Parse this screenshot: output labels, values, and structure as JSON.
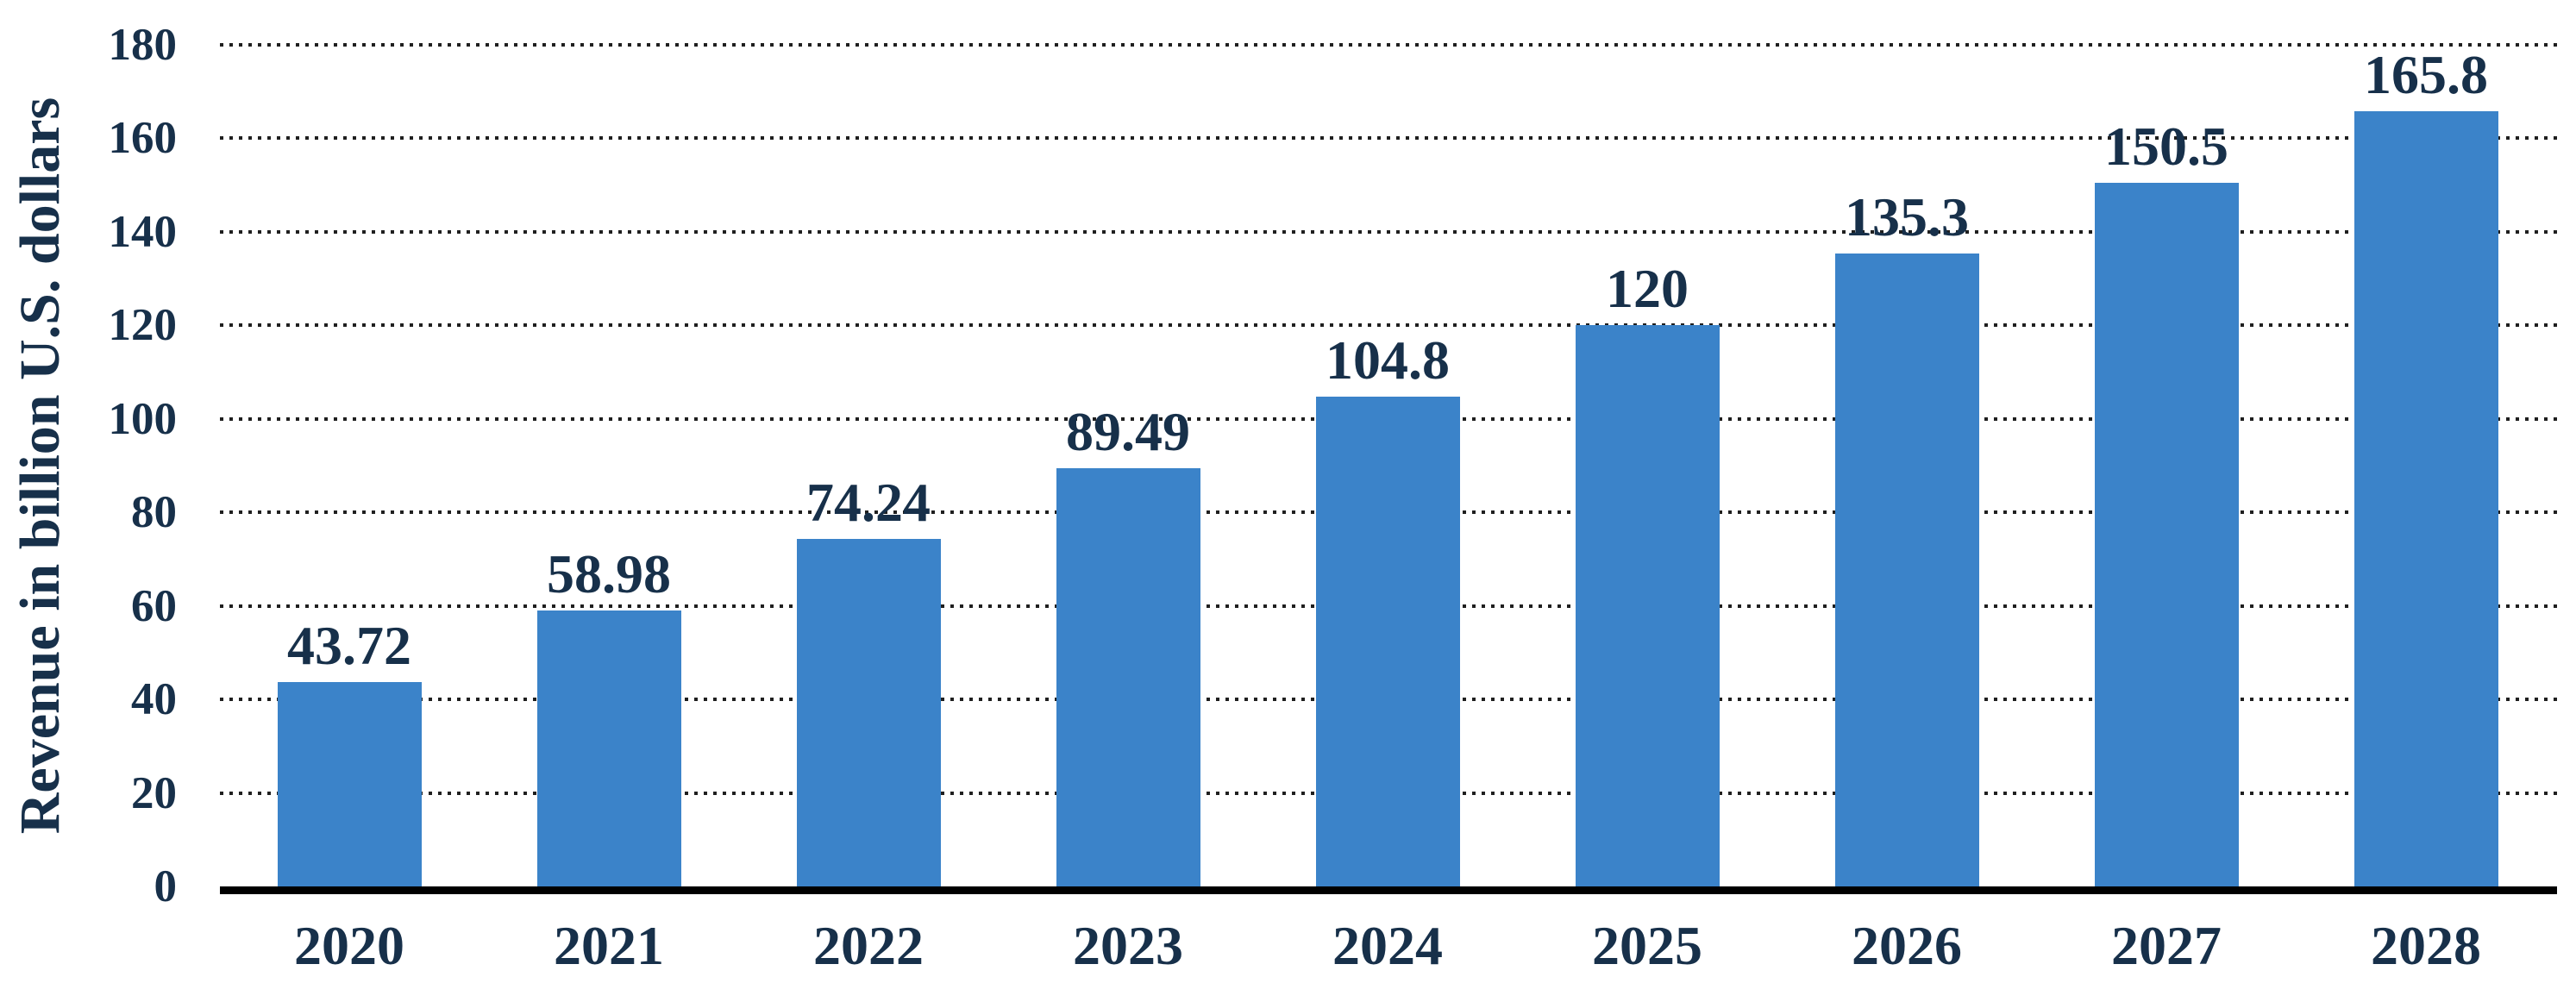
{
  "chart_data": {
    "type": "bar",
    "title": "",
    "xlabel": "",
    "ylabel": "Revenue in billion U.S. dollars",
    "categories": [
      "2020",
      "2021",
      "2022",
      "2023",
      "2024",
      "2025",
      "2026",
      "2027",
      "2028"
    ],
    "values": [
      43.72,
      58.98,
      74.24,
      89.49,
      104.8,
      120,
      135.3,
      150.5,
      165.8
    ],
    "value_labels": [
      "43.72",
      "58.98",
      "74.24",
      "89.49",
      "104.8",
      "120",
      "135.3",
      "150.5",
      "165.8"
    ],
    "ylim": [
      0,
      180
    ],
    "ytick_step": 20,
    "ytick_labels": [
      "0",
      "20",
      "40",
      "60",
      "80",
      "100",
      "120",
      "140",
      "160",
      "180"
    ],
    "grid": "horizontal-dotted",
    "legend": "none",
    "colors": {
      "bar": "#3B83C9",
      "text": "#17304A",
      "gridline": "#1F1F1F",
      "axis": "#000000",
      "background": "#FFFFFF"
    }
  }
}
